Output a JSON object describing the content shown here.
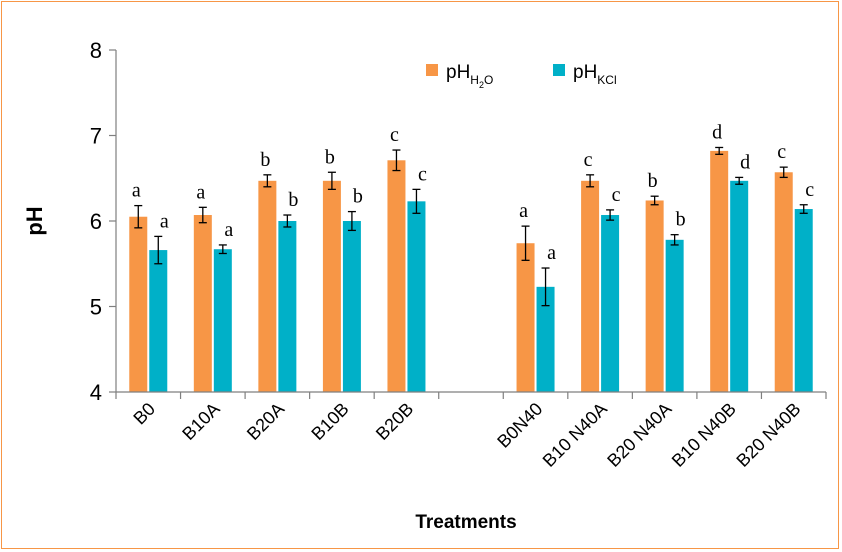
{
  "chart_data": {
    "type": "bar",
    "xlabel": "Treatments",
    "ylabel": "pH",
    "ylim": [
      4,
      8
    ],
    "yticks": [
      "4",
      "5",
      "6",
      "7",
      "8"
    ],
    "legend_position": "top-right",
    "categories": [
      "B0",
      "B10A",
      "B20A",
      "B10B",
      "B20B",
      "",
      "B0N40",
      "B10 N40A",
      "B20 N40A",
      "B10 N40B",
      "B20 N40B"
    ],
    "series": [
      {
        "name": "pH",
        "name_sub": "H2O",
        "name_sub_parts": [
          "H",
          "2",
          "O"
        ],
        "color": "#f79646",
        "values": [
          6.05,
          6.07,
          6.47,
          6.47,
          6.71,
          null,
          5.74,
          6.47,
          6.24,
          6.82,
          6.57
        ],
        "errors": [
          0.13,
          0.09,
          0.07,
          0.1,
          0.12,
          null,
          0.2,
          0.07,
          0.05,
          0.04,
          0.06
        ],
        "letters": [
          "a",
          "a",
          "b",
          "b",
          "c",
          "",
          "a",
          "c",
          "b",
          "d",
          "c"
        ]
      },
      {
        "name": "pH",
        "name_sub": "KCl",
        "color": "#00b0c8",
        "values": [
          5.66,
          5.67,
          6.0,
          6.0,
          6.23,
          null,
          5.23,
          6.07,
          5.78,
          6.47,
          6.14
        ],
        "errors": [
          0.16,
          0.05,
          0.07,
          0.11,
          0.14,
          null,
          0.22,
          0.06,
          0.06,
          0.04,
          0.05
        ],
        "letters": [
          "a",
          "a",
          "b",
          "b",
          "c",
          "",
          "a",
          "c",
          "b",
          "d",
          "c"
        ]
      }
    ]
  }
}
